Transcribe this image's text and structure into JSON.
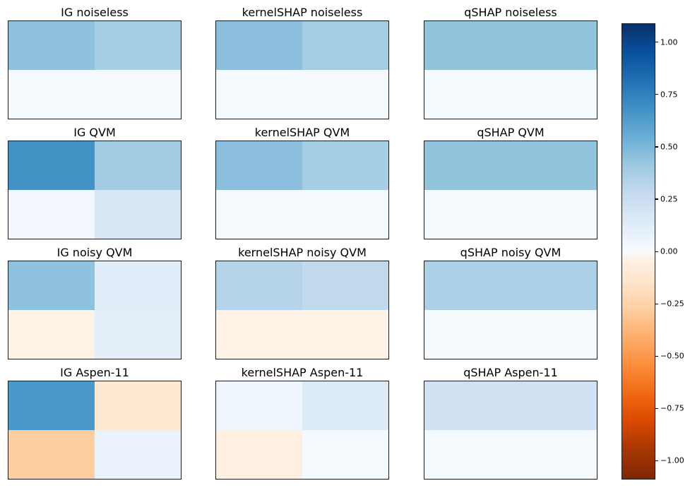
{
  "figure": {
    "background": "#ffffff",
    "border_color": "#1a1a1a"
  },
  "chart_data": {
    "type": "heatmap",
    "layout_hint": "4 rows x 3 columns of 2x2 heatmaps sharing one vertical colorbar on the right; no axis ticks on panels; diverging blue-white-orange colormap",
    "grid": {
      "rows": 2,
      "cols": 2
    },
    "panels": [
      {
        "title": "IG noiseless",
        "values": [
          [
            0.45,
            0.38
          ],
          [
            0.01,
            0.01
          ]
        ]
      },
      {
        "title": "kernelSHAP noiseless",
        "values": [
          [
            0.46,
            0.39
          ],
          [
            0.01,
            0.01
          ]
        ]
      },
      {
        "title": "qSHAP noiseless",
        "values": [
          [
            0.44,
            0.44
          ],
          [
            0.01,
            0.01
          ]
        ]
      },
      {
        "title": "IG QVM",
        "values": [
          [
            0.68,
            0.4
          ],
          [
            0.03,
            0.18
          ]
        ]
      },
      {
        "title": "kernelSHAP QVM",
        "values": [
          [
            0.46,
            0.38
          ],
          [
            0.01,
            0.01
          ]
        ]
      },
      {
        "title": "qSHAP QVM",
        "values": [
          [
            0.44,
            0.44
          ],
          [
            0.01,
            0.01
          ]
        ]
      },
      {
        "title": "IG noisy QVM",
        "values": [
          [
            0.45,
            0.12
          ],
          [
            -0.02,
            0.1
          ]
        ]
      },
      {
        "title": "kernelSHAP noisy QVM",
        "values": [
          [
            0.33,
            0.29
          ],
          [
            -0.02,
            -0.02
          ]
        ]
      },
      {
        "title": "qSHAP noisy QVM",
        "values": [
          [
            0.36,
            0.36
          ],
          [
            0.01,
            0.01
          ]
        ]
      },
      {
        "title": "IG Aspen-11",
        "values": [
          [
            0.65,
            -0.12
          ],
          [
            -0.28,
            0.07
          ]
        ]
      },
      {
        "title": "kernelSHAP Aspen-11",
        "values": [
          [
            0.05,
            0.14
          ],
          [
            -0.05,
            0.01
          ]
        ]
      },
      {
        "title": "qSHAP Aspen-11",
        "values": [
          [
            0.22,
            0.22
          ],
          [
            0.01,
            0.01
          ]
        ]
      }
    ],
    "colorbar": {
      "vmin": -1.09,
      "vmax": 1.09,
      "ticks": [
        1.0,
        0.75,
        0.5,
        0.25,
        0.0,
        -0.25,
        -0.5,
        -0.75,
        -1.0
      ],
      "tick_labels": [
        "1.00",
        "0.75",
        "0.50",
        "0.25",
        "0.00",
        "−0.25",
        "−0.50",
        "−0.75",
        "−1.00"
      ],
      "position": "right"
    },
    "colormap": {
      "name": "diverging-oranges-white-blues",
      "positive_stops": [
        "#f7fbff",
        "#deebf7",
        "#c6dbef",
        "#9ecae1",
        "#6baed6",
        "#4292c6",
        "#2171b5",
        "#08519c",
        "#08306b"
      ],
      "negative_stops": [
        "#fff5eb",
        "#fee6ce",
        "#fdd0a2",
        "#fdae6b",
        "#fd8d3c",
        "#f16913",
        "#d94801",
        "#a63603",
        "#7f2704"
      ]
    }
  }
}
